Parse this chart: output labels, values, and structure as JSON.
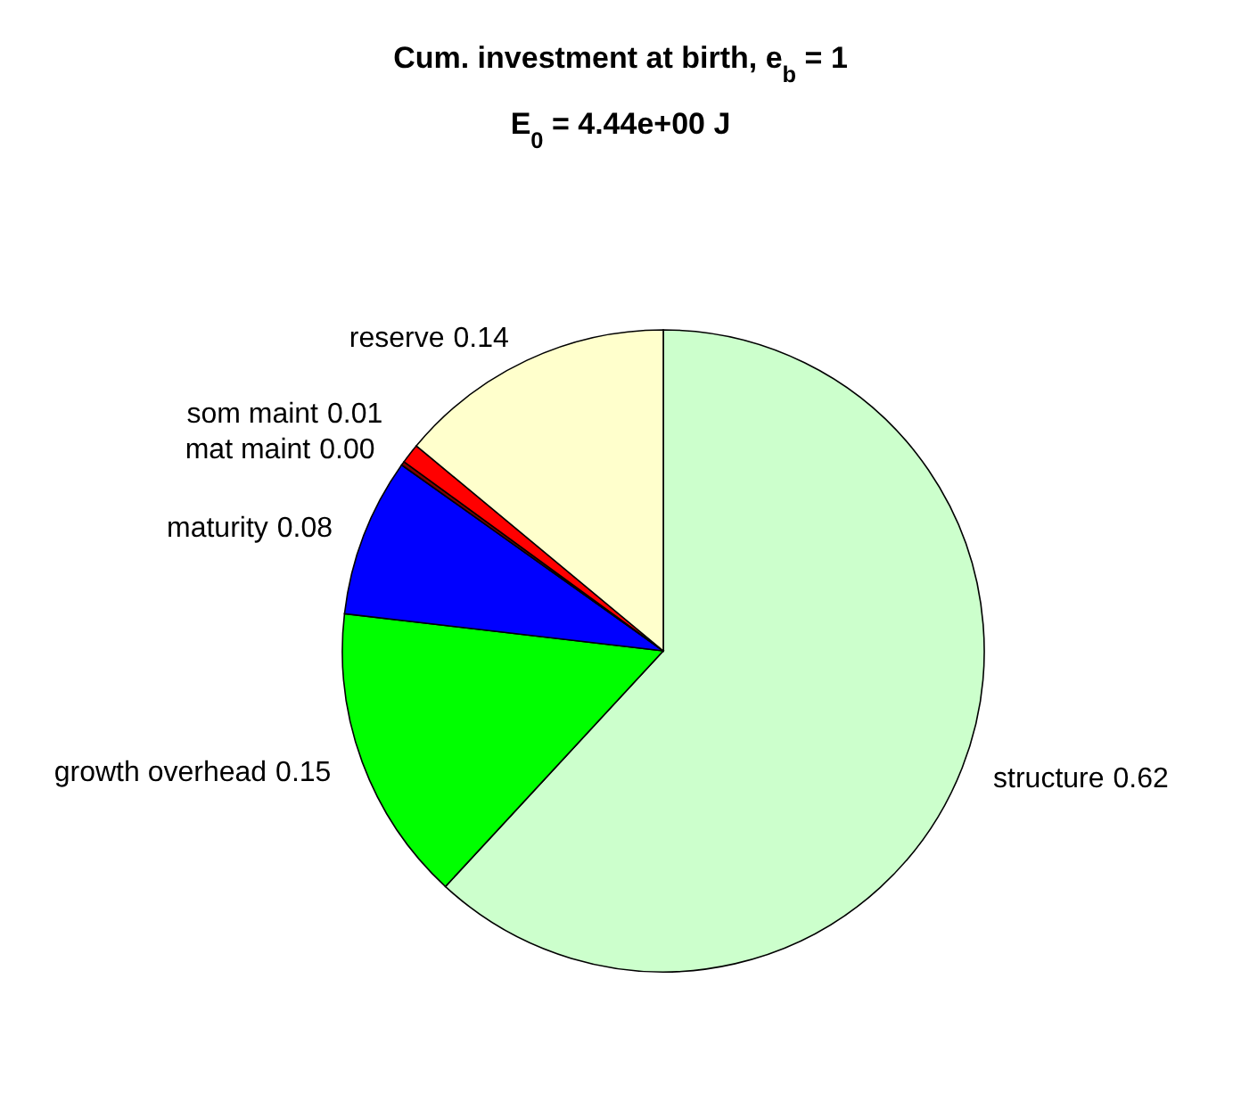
{
  "chart_data": {
    "type": "pie",
    "title": "Cum. investment at birth, e$_{b}$ = 1",
    "subtitle": "E$_{0}$ = 4.44e+00 J",
    "categories": [
      "structure",
      "growth overhead",
      "maturity",
      "mat maint",
      "som maint",
      "reserve"
    ],
    "values": [
      0.62,
      0.15,
      0.08,
      0.002,
      0.01,
      0.14
    ],
    "value_labels": [
      "0.62",
      "0.15",
      "0.08",
      "0.00",
      "0.01",
      "0.14"
    ],
    "colors": [
      "#ccffcc",
      "#00ff00",
      "#0000ff",
      "#800000",
      "#ff0000",
      "#ffffcc"
    ]
  }
}
